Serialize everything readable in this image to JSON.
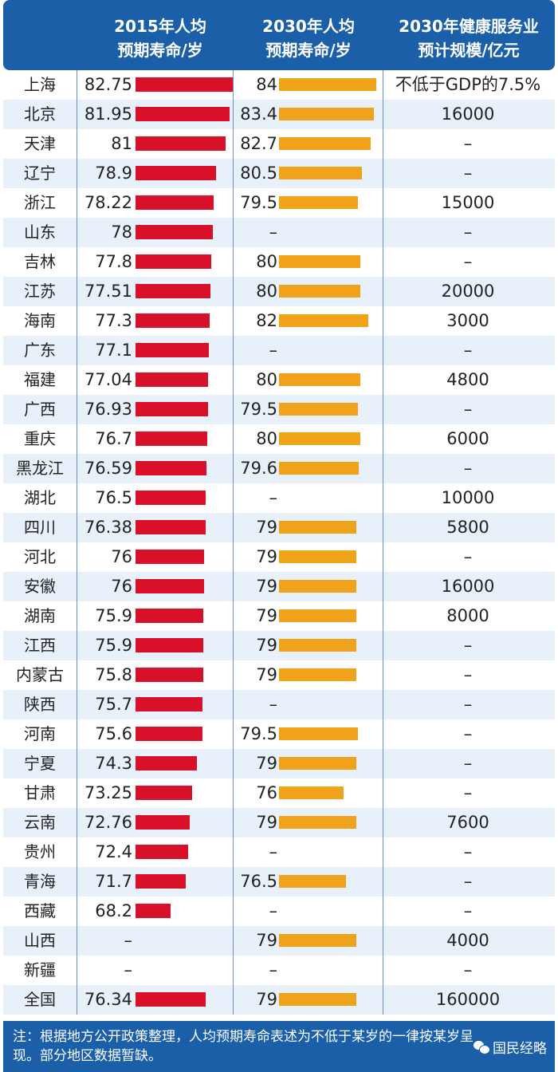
{
  "header": {
    "col_2015": [
      "2015年人均",
      "预期寿命/岁"
    ],
    "col_2030": [
      "2030年人均",
      "预期寿命/岁"
    ],
    "col_health": [
      "2030年健康服务业",
      "预计规模/亿元"
    ]
  },
  "chart_data": {
    "type": "table",
    "columns": [
      "",
      "2015年人均预期寿命/岁",
      "2030年人均预期寿命/岁",
      "2030年健康服务业预计规模/亿元"
    ],
    "rows": [
      {
        "name": "上海",
        "v2015": "82.75",
        "v2030": "84",
        "health": "不低于GDP的7.5%"
      },
      {
        "name": "北京",
        "v2015": "81.95",
        "v2030": "83.4",
        "health": "16000"
      },
      {
        "name": "天津",
        "v2015": "81",
        "v2030": "82.7",
        "health": "–"
      },
      {
        "name": "辽宁",
        "v2015": "78.9",
        "v2030": "80.5",
        "health": "–"
      },
      {
        "name": "浙江",
        "v2015": "78.22",
        "v2030": "79.5",
        "health": "15000"
      },
      {
        "name": "山东",
        "v2015": "78",
        "v2030": "–",
        "health": "–"
      },
      {
        "name": "吉林",
        "v2015": "77.8",
        "v2030": "80",
        "health": "–"
      },
      {
        "name": "江苏",
        "v2015": "77.51",
        "v2030": "80",
        "health": "20000"
      },
      {
        "name": "海南",
        "v2015": "77.3",
        "v2030": "82",
        "health": "3000"
      },
      {
        "name": "广东",
        "v2015": "77.1",
        "v2030": "–",
        "health": "–"
      },
      {
        "name": "福建",
        "v2015": "77.04",
        "v2030": "80",
        "health": "4800"
      },
      {
        "name": "广西",
        "v2015": "76.93",
        "v2030": "79.5",
        "health": "–"
      },
      {
        "name": "重庆",
        "v2015": "76.7",
        "v2030": "80",
        "health": "6000"
      },
      {
        "name": "黑龙江",
        "v2015": "76.59",
        "v2030": "79.6",
        "health": "–"
      },
      {
        "name": "湖北",
        "v2015": "76.5",
        "v2030": "–",
        "health": "10000"
      },
      {
        "name": "四川",
        "v2015": "76.38",
        "v2030": "79",
        "health": "5800"
      },
      {
        "name": "河北",
        "v2015": "76",
        "v2030": "79",
        "health": "–"
      },
      {
        "name": "安徽",
        "v2015": "76",
        "v2030": "79",
        "health": "16000"
      },
      {
        "name": "湖南",
        "v2015": "75.9",
        "v2030": "79",
        "health": "8000"
      },
      {
        "name": "江西",
        "v2015": "75.9",
        "v2030": "79",
        "health": "–"
      },
      {
        "name": "内蒙古",
        "v2015": "75.8",
        "v2030": "79",
        "health": "–"
      },
      {
        "name": "陕西",
        "v2015": "75.7",
        "v2030": "–",
        "health": "–"
      },
      {
        "name": "河南",
        "v2015": "75.6",
        "v2030": "79.5",
        "health": "–"
      },
      {
        "name": "宁夏",
        "v2015": "74.3",
        "v2030": "79",
        "health": "–"
      },
      {
        "name": "甘肃",
        "v2015": "73.25",
        "v2030": "76",
        "health": "–"
      },
      {
        "name": "云南",
        "v2015": "72.76",
        "v2030": "79",
        "health": "7600"
      },
      {
        "name": "贵州",
        "v2015": "72.4",
        "v2030": "–",
        "health": "–"
      },
      {
        "name": "青海",
        "v2015": "71.7",
        "v2030": "76.5",
        "health": "–"
      },
      {
        "name": "西藏",
        "v2015": "68.2",
        "v2030": "–",
        "health": "–"
      },
      {
        "name": "山西",
        "v2015": "–",
        "v2030": "79",
        "health": "4000"
      },
      {
        "name": "新疆",
        "v2015": "–",
        "v2030": "–",
        "health": "–"
      },
      {
        "name": "全国",
        "v2015": "76.34",
        "v2030": "79",
        "health": "160000"
      }
    ]
  },
  "footer": {
    "note": "注：根据地方公开政策整理，人均预期寿命表述为不低于某岁的一律按某岁呈现。部分地区数据暂缺。",
    "brand": "国民经略"
  },
  "colors": {
    "header_bg": "#1a5fa8",
    "bar_2015": "#d9102a",
    "bar_2030": "#f0a21a",
    "row_alt": "#e8f0fa"
  }
}
